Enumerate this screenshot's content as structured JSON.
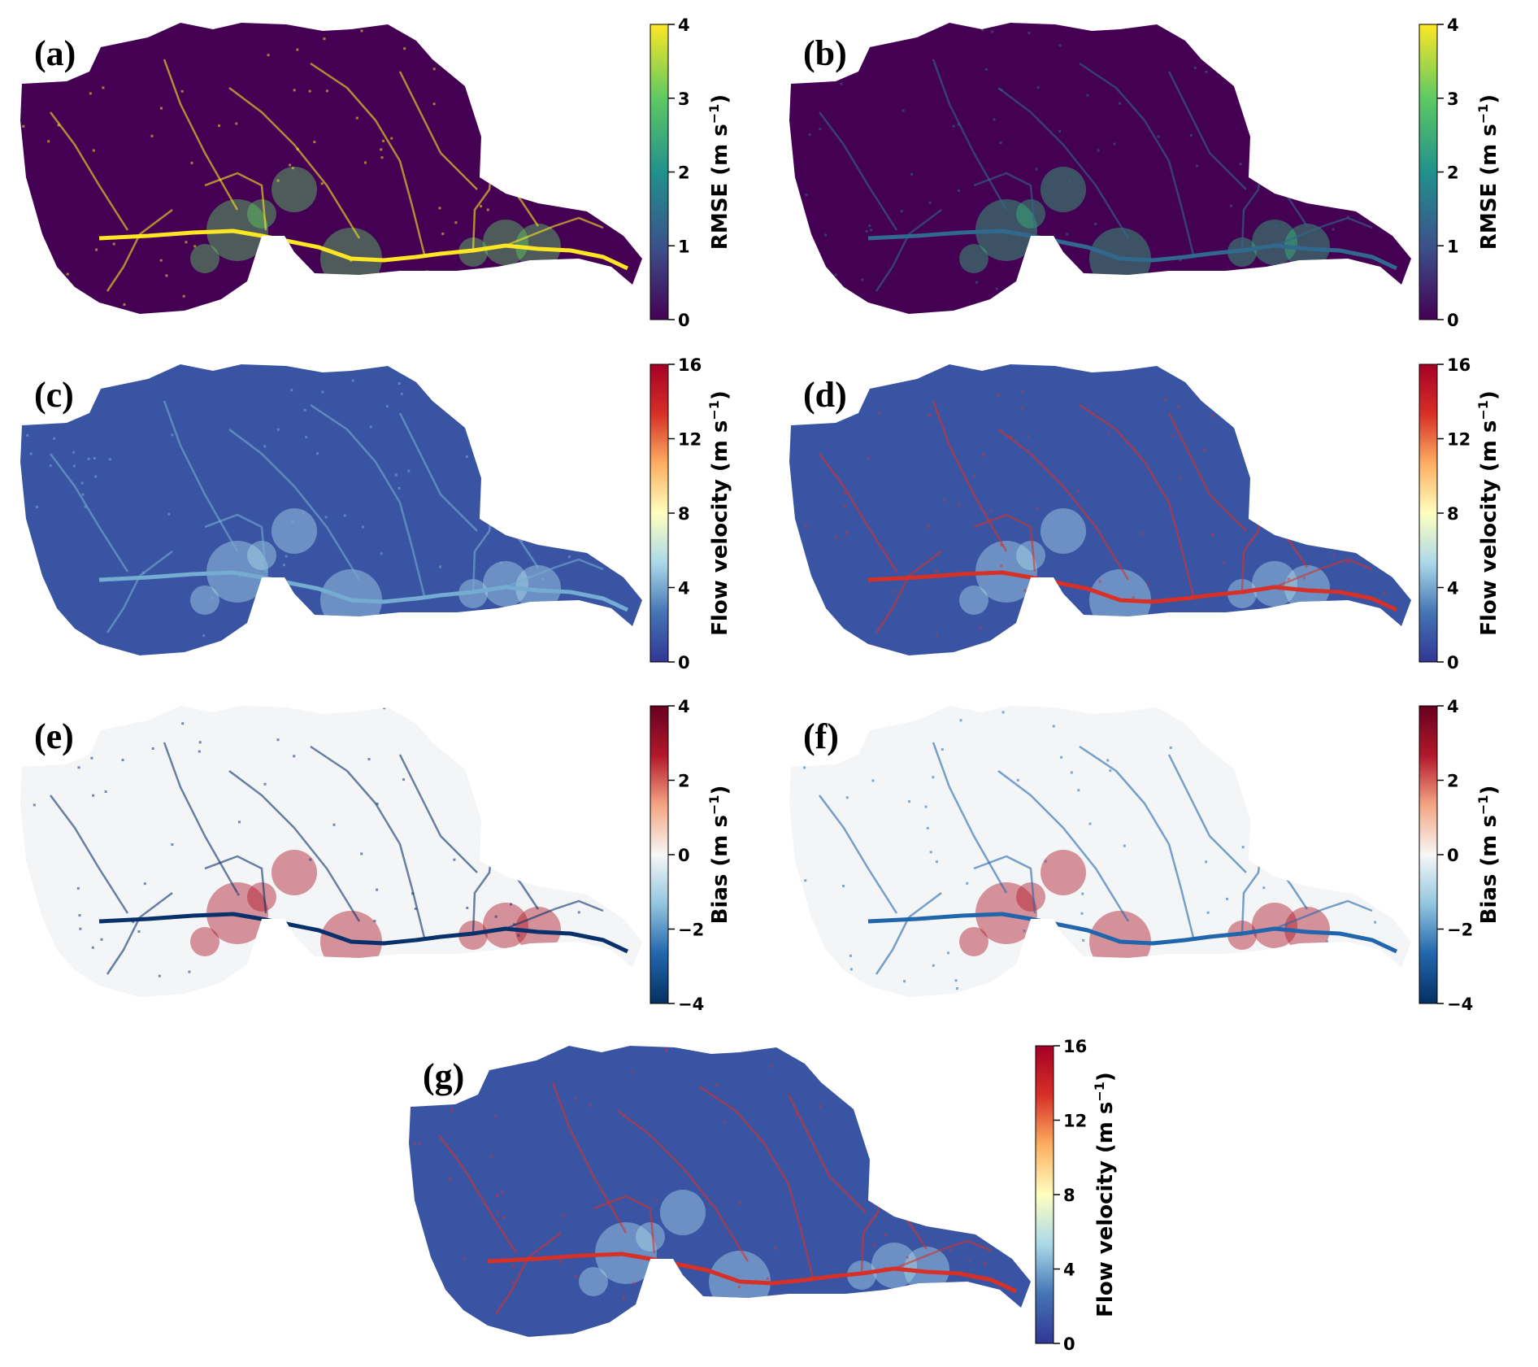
{
  "colormaps": {
    "viridis": [
      "#440154",
      "#3b528b",
      "#21918c",
      "#5ec962",
      "#fde725"
    ],
    "rdylbu_r": [
      "#313695",
      "#4575b4",
      "#abd9e9",
      "#ffffbf",
      "#fdae61",
      "#d73027",
      "#a50026"
    ],
    "rdbu_r": [
      "#053061",
      "#2166ac",
      "#92c5de",
      "#f7f7f7",
      "#f4a582",
      "#b2182b",
      "#67001f"
    ]
  },
  "panels": [
    {
      "label": "(a)",
      "map_base": "#440154",
      "river": "#fde725",
      "hot": "#5ec962",
      "colorbar": {
        "cmap": "viridis",
        "label": "RMSE (m s",
        "sup": "−1",
        "close": ")",
        "ticks": [
          "0",
          "1",
          "2",
          "3",
          "4"
        ]
      }
    },
    {
      "label": "(b)",
      "map_base": "#440154",
      "river": "#31688e",
      "hot": "#35b779",
      "colorbar": {
        "cmap": "viridis",
        "label": "RMSE (m s",
        "sup": "−1",
        "close": ")",
        "ticks": [
          "0",
          "1",
          "2",
          "3",
          "4"
        ]
      }
    },
    {
      "label": "(c)",
      "map_base": "#3a54a4",
      "river": "#74add1",
      "hot": "#abd9e9",
      "colorbar": {
        "cmap": "rdylbu_r",
        "label": "Flow velocity (m s",
        "sup": "−1",
        "close": ")",
        "ticks": [
          "0",
          "4",
          "8",
          "12",
          "16"
        ]
      }
    },
    {
      "label": "(d)",
      "map_base": "#3a54a4",
      "river": "#d73027",
      "hot": "#abd9e9",
      "colorbar": {
        "cmap": "rdylbu_r",
        "label": "Flow velocity (m s",
        "sup": "−1",
        "close": ")",
        "ticks": [
          "0",
          "4",
          "8",
          "12",
          "16"
        ]
      }
    },
    {
      "label": "(e)",
      "map_base": "#f3f5f6",
      "river": "#08306b",
      "hot": "#b2182b",
      "colorbar": {
        "cmap": "rdbu_r",
        "label": "Bias (m s",
        "sup": "−1",
        "close": ")",
        "ticks": [
          "−4",
          "−2",
          "0",
          "2",
          "4"
        ]
      }
    },
    {
      "label": "(f)",
      "map_base": "#f3f5f6",
      "river": "#2166ac",
      "hot": "#b2182b",
      "colorbar": {
        "cmap": "rdbu_r",
        "label": "Bias (m s",
        "sup": "−1",
        "close": ")",
        "ticks": [
          "−4",
          "−2",
          "0",
          "2",
          "4"
        ]
      }
    },
    {
      "label": "(g)",
      "map_base": "#3a54a4",
      "river": "#d73027",
      "hot": "#abd9e9",
      "colorbar": {
        "cmap": "rdylbu_r",
        "label": "Flow velocity (m s",
        "sup": "−1",
        "close": ")",
        "ticks": [
          "0",
          "4",
          "8",
          "12",
          "16"
        ]
      }
    }
  ]
}
